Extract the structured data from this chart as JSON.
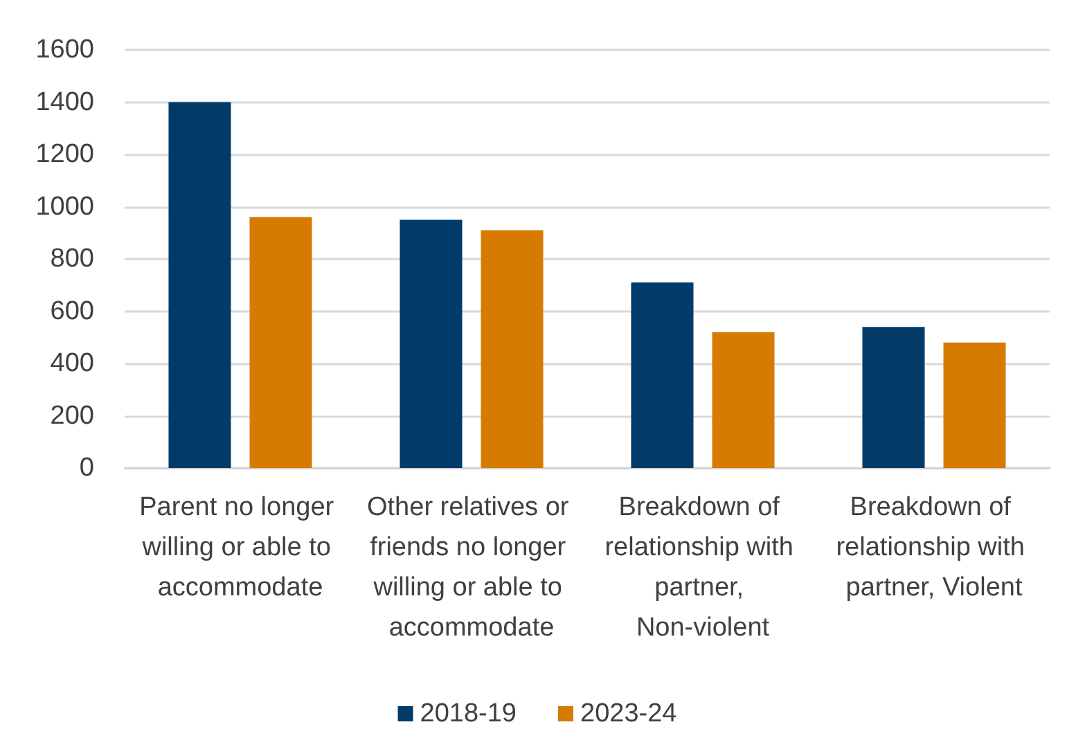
{
  "chart_data": {
    "type": "bar",
    "categories": [
      "Parent no longer willing or able to accommodate",
      "Other relatives or friends no longer willing or able to accommodate",
      "Breakdown of relationship with partner, Non-violent",
      "Breakdown of relationship with partner, Violent"
    ],
    "series": [
      {
        "name": "2018-19",
        "color": "#003b6a",
        "values": [
          1400,
          950,
          710,
          540
        ]
      },
      {
        "name": "2023-24",
        "color": "#d67b00",
        "values": [
          960,
          910,
          520,
          480
        ]
      }
    ],
    "ylim": [
      0,
      1600
    ],
    "yticks": [
      0,
      200,
      400,
      600,
      800,
      1000,
      1200,
      1400,
      1600
    ],
    "grid": "y",
    "legend": "bottom"
  }
}
